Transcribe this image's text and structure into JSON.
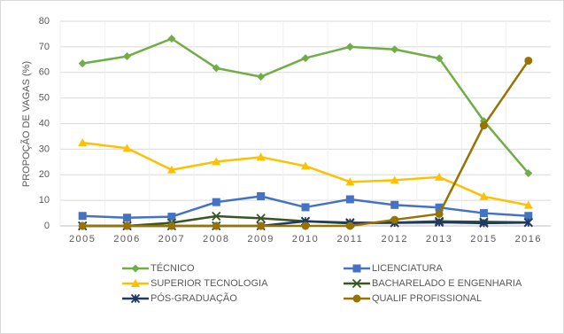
{
  "chart_data": {
    "type": "line",
    "y_label": "PROPOÇÃO DE VAGAS (%)",
    "categories": [
      "2005",
      "2006",
      "2007",
      "2008",
      "2009",
      "2010",
      "2011",
      "2012",
      "2013",
      "2015",
      "2016"
    ],
    "ylim": [
      0,
      80
    ],
    "yticks": [
      0,
      10,
      20,
      30,
      40,
      50,
      60,
      70,
      80
    ],
    "grid": true,
    "legend": "bottom",
    "series": [
      {
        "name": "TÉCNICO",
        "color": "#70ad47",
        "marker": "diamond",
        "values": [
          63.5,
          66.3,
          73.2,
          61.7,
          58.3,
          65.6,
          70,
          69,
          65.5,
          41,
          20.6
        ]
      },
      {
        "name": "LICENCIATURA",
        "color": "#4472c4",
        "marker": "square",
        "values": [
          3.9,
          3.2,
          3.6,
          9.3,
          11.6,
          7.3,
          10.4,
          8.2,
          7.2,
          5,
          3.9
        ]
      },
      {
        "name": "SUPERIOR TECNOLOGIA",
        "color": "#ffc000",
        "marker": "triangle",
        "values": [
          32.5,
          30.4,
          21.9,
          25.1,
          26.9,
          23.4,
          17.2,
          17.9,
          19.1,
          11.5,
          8.1
        ]
      },
      {
        "name": "BACHARELADO E ENGENHARIA",
        "color": "#375623",
        "marker": "x",
        "values": [
          0,
          0,
          1.2,
          3.8,
          3,
          1.8,
          1,
          1.3,
          1.8,
          1.6,
          1.4
        ]
      },
      {
        "name": "PÓS-GRADUAÇÃO",
        "color": "#1f3864",
        "marker": "star",
        "values": [
          0,
          0,
          0,
          0,
          0,
          1.8,
          1.3,
          1.2,
          1.4,
          1.1,
          1.3
        ]
      },
      {
        "name": "QUALIF PROFISSIONAL",
        "color": "#997300",
        "marker": "circle",
        "values": [
          0,
          0,
          0,
          0,
          0,
          0,
          0,
          2.4,
          4.7,
          39.3,
          64.6
        ]
      }
    ]
  }
}
